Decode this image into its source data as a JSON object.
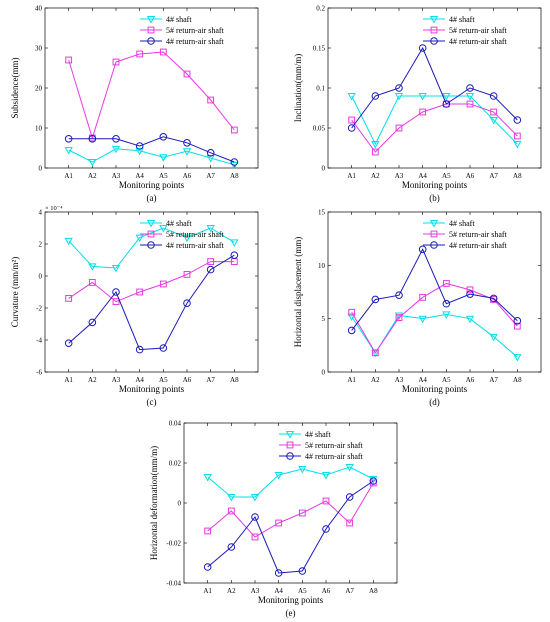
{
  "colors": {
    "cyan": "#00e0e8",
    "magenta": "#e83ae0",
    "blue": "#1a1ab8"
  },
  "chart_data": [
    {
      "type": "line",
      "caption": "(a)",
      "xlabel": "Monitoring points",
      "ylabel": "Subsidence(mm)",
      "categories": [
        "A1",
        "A2",
        "A3",
        "A4",
        "A5",
        "A6",
        "A7",
        "A8"
      ],
      "ylim": [
        0,
        40
      ],
      "yticks": [
        "0",
        "10",
        "20",
        "30",
        "40"
      ],
      "exponent": "",
      "legend_position": "top-right",
      "grid": false,
      "series": [
        {
          "name": "4# shaft",
          "color": "cyan",
          "marker": "triangle-down",
          "values": [
            4.5,
            1.5,
            4.8,
            4.3,
            2.7,
            4.2,
            2.5,
            0.8
          ]
        },
        {
          "name": "5# return-air shaft",
          "color": "magenta",
          "marker": "square",
          "values": [
            27,
            7.5,
            26.5,
            28.5,
            29,
            23.5,
            17,
            9.5
          ]
        },
        {
          "name": "4# return-air shaft",
          "color": "blue",
          "marker": "circle",
          "values": [
            7.3,
            7.3,
            7.3,
            5.5,
            7.8,
            6.3,
            3.8,
            1.5
          ]
        }
      ]
    },
    {
      "type": "line",
      "caption": "(b)",
      "xlabel": "Monitoring points",
      "ylabel": "Inclination(mm/m)",
      "categories": [
        "A1",
        "A2",
        "A3",
        "A4",
        "A5",
        "A6",
        "A7",
        "A8"
      ],
      "ylim": [
        0,
        0.2
      ],
      "yticks": [
        "0",
        "0.05",
        "0.1",
        "0.15",
        "0.2"
      ],
      "exponent": "",
      "legend_position": "top-right",
      "grid": false,
      "series": [
        {
          "name": "4# shaft",
          "color": "cyan",
          "marker": "triangle-down",
          "values": [
            0.09,
            0.03,
            0.09,
            0.09,
            0.09,
            0.09,
            0.06,
            0.03
          ]
        },
        {
          "name": "5# return-air shaft",
          "color": "magenta",
          "marker": "square",
          "values": [
            0.06,
            0.02,
            0.05,
            0.07,
            0.08,
            0.08,
            0.07,
            0.04
          ]
        },
        {
          "name": "4# return-air shaft",
          "color": "blue",
          "marker": "circle",
          "values": [
            0.05,
            0.09,
            0.1,
            0.15,
            0.08,
            0.1,
            0.09,
            0.06
          ]
        }
      ]
    },
    {
      "type": "line",
      "caption": "(c)",
      "xlabel": "Monitoring points",
      "ylabel": "Curvature (mm/m²)",
      "categories": [
        "A1",
        "A2",
        "A3",
        "A4",
        "A5",
        "A6",
        "A7",
        "A8"
      ],
      "ylim": [
        -6,
        4
      ],
      "yticks": [
        "-6",
        "-4",
        "-2",
        "0",
        "2",
        "4"
      ],
      "exponent": "× 10⁻⁴",
      "legend_position": "top-right",
      "grid": false,
      "series": [
        {
          "name": "4# shaft",
          "color": "cyan",
          "marker": "triangle-down",
          "values": [
            2.2,
            0.6,
            0.5,
            2.4,
            3.0,
            2.4,
            3.0,
            2.1
          ]
        },
        {
          "name": "5# return-air shaft",
          "color": "magenta",
          "marker": "square",
          "values": [
            -1.4,
            -0.4,
            -1.6,
            -1.0,
            -0.5,
            0.1,
            0.9,
            0.9
          ]
        },
        {
          "name": "4# return-air shaft",
          "color": "blue",
          "marker": "circle",
          "values": [
            -4.2,
            -2.9,
            -1.0,
            -4.6,
            -4.5,
            -1.7,
            0.4,
            1.3
          ]
        }
      ]
    },
    {
      "type": "line",
      "caption": "(d)",
      "xlabel": "Monitoring points",
      "ylabel": "Horizontal displacement (mm)",
      "categories": [
        "A1",
        "A2",
        "A3",
        "A4",
        "A5",
        "A6",
        "A7",
        "A8"
      ],
      "ylim": [
        0,
        15
      ],
      "yticks": [
        "0",
        "5",
        "10",
        "15"
      ],
      "exponent": "",
      "legend_position": "top-right",
      "grid": false,
      "series": [
        {
          "name": "4# shaft",
          "color": "cyan",
          "marker": "triangle-down",
          "values": [
            5.2,
            1.8,
            5.3,
            5.0,
            5.4,
            5.0,
            3.3,
            1.4
          ]
        },
        {
          "name": "5# return-air shaft",
          "color": "magenta",
          "marker": "square",
          "values": [
            5.6,
            1.8,
            5.1,
            7.0,
            8.3,
            7.7,
            6.8,
            4.3
          ]
        },
        {
          "name": "4# return-air shaft",
          "color": "blue",
          "marker": "circle",
          "values": [
            3.9,
            6.8,
            7.2,
            11.5,
            6.4,
            7.3,
            6.9,
            4.8
          ]
        }
      ]
    },
    {
      "type": "line",
      "caption": "(e)",
      "xlabel": "Monitoring points",
      "ylabel": "Horizontal deformation(mm/m)",
      "categories": [
        "A1",
        "A2",
        "A3",
        "A4",
        "A5",
        "A6",
        "A7",
        "A8"
      ],
      "ylim": [
        -0.04,
        0.04
      ],
      "yticks": [
        "-0.04",
        "-0.02",
        "0",
        "0.02",
        "0.04"
      ],
      "exponent": "",
      "legend_position": "top-right",
      "grid": false,
      "series": [
        {
          "name": "4# shaft",
          "color": "cyan",
          "marker": "triangle-down",
          "values": [
            0.013,
            0.003,
            0.003,
            0.014,
            0.017,
            0.014,
            0.018,
            0.012
          ]
        },
        {
          "name": "5# return-air shaft",
          "color": "magenta",
          "marker": "square",
          "values": [
            -0.014,
            -0.004,
            -0.017,
            -0.01,
            -0.005,
            0.001,
            -0.01,
            0.01
          ]
        },
        {
          "name": "4# return-air shaft",
          "color": "blue",
          "marker": "circle",
          "values": [
            -0.032,
            -0.022,
            -0.007,
            -0.035,
            -0.034,
            -0.013,
            0.003,
            0.011
          ]
        }
      ]
    }
  ]
}
